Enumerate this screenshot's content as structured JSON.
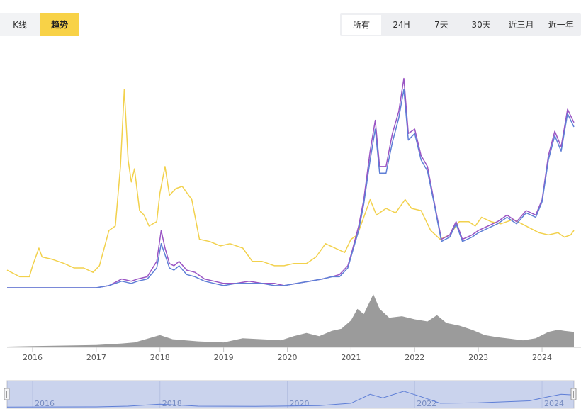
{
  "view_toggle": {
    "kline_label": "K线",
    "trend_label": "趋势"
  },
  "range_buttons": [
    "所有",
    "24H",
    "7天",
    "30天",
    "近三月",
    "近一年"
  ],
  "active_range": 0,
  "colors": {
    "yellow": "#f2d14c",
    "purple": "#9a55c4",
    "blue": "#5f7fd6",
    "volume": "#9b9b9b",
    "accent": "#f8d247"
  },
  "chart_data": {
    "type": "line",
    "x_tick_labels": [
      "2016",
      "2017",
      "2018",
      "2019",
      "2020",
      "2021",
      "2022",
      "2023",
      "2024"
    ],
    "navigator_labels": [
      "2016",
      "2018",
      "2020",
      "2022",
      "2024"
    ],
    "xlim": [
      2015.6,
      2024.5
    ],
    "ylim": [
      0,
      100
    ],
    "volume_ylim": [
      0,
      100
    ],
    "series": [
      {
        "key": "yellow",
        "points": [
          [
            2015.6,
            8
          ],
          [
            2015.8,
            5
          ],
          [
            2015.95,
            5
          ],
          [
            2016.0,
            10
          ],
          [
            2016.1,
            18
          ],
          [
            2016.15,
            14
          ],
          [
            2016.3,
            13
          ],
          [
            2016.5,
            11
          ],
          [
            2016.65,
            9
          ],
          [
            2016.8,
            9
          ],
          [
            2016.95,
            7
          ],
          [
            2017.05,
            10
          ],
          [
            2017.2,
            26
          ],
          [
            2017.3,
            28
          ],
          [
            2017.38,
            55
          ],
          [
            2017.44,
            90
          ],
          [
            2017.5,
            58
          ],
          [
            2017.55,
            48
          ],
          [
            2017.6,
            54
          ],
          [
            2017.68,
            35
          ],
          [
            2017.75,
            33
          ],
          [
            2017.83,
            28
          ],
          [
            2017.95,
            30
          ],
          [
            2018.0,
            43
          ],
          [
            2018.08,
            55
          ],
          [
            2018.15,
            42
          ],
          [
            2018.25,
            45
          ],
          [
            2018.35,
            46
          ],
          [
            2018.5,
            40
          ],
          [
            2018.62,
            22
          ],
          [
            2018.78,
            21
          ],
          [
            2018.95,
            19
          ],
          [
            2019.1,
            20
          ],
          [
            2019.3,
            18
          ],
          [
            2019.45,
            12
          ],
          [
            2019.6,
            12
          ],
          [
            2019.8,
            10
          ],
          [
            2019.95,
            10
          ],
          [
            2020.1,
            11
          ],
          [
            2020.3,
            11
          ],
          [
            2020.45,
            14
          ],
          [
            2020.6,
            20
          ],
          [
            2020.75,
            18
          ],
          [
            2020.9,
            16
          ],
          [
            2021.0,
            22
          ],
          [
            2021.1,
            24
          ],
          [
            2021.2,
            32
          ],
          [
            2021.3,
            40
          ],
          [
            2021.4,
            33
          ],
          [
            2021.55,
            36
          ],
          [
            2021.7,
            34
          ],
          [
            2021.85,
            40
          ],
          [
            2021.95,
            36
          ],
          [
            2022.1,
            35
          ],
          [
            2022.25,
            26
          ],
          [
            2022.4,
            22
          ],
          [
            2022.55,
            24
          ],
          [
            2022.7,
            30
          ],
          [
            2022.85,
            30
          ],
          [
            2022.95,
            28
          ],
          [
            2023.05,
            32
          ],
          [
            2023.2,
            30
          ],
          [
            2023.35,
            29
          ],
          [
            2023.55,
            31
          ],
          [
            2023.75,
            28
          ],
          [
            2023.95,
            25
          ],
          [
            2024.1,
            24
          ],
          [
            2024.25,
            25
          ],
          [
            2024.35,
            23
          ],
          [
            2024.45,
            24
          ],
          [
            2024.5,
            26
          ]
        ]
      },
      {
        "key": "purple",
        "points": [
          [
            2015.6,
            0
          ],
          [
            2016.5,
            0
          ],
          [
            2017.0,
            0
          ],
          [
            2017.2,
            1
          ],
          [
            2017.4,
            4
          ],
          [
            2017.55,
            3
          ],
          [
            2017.65,
            4
          ],
          [
            2017.8,
            5
          ],
          [
            2017.95,
            12
          ],
          [
            2018.02,
            26
          ],
          [
            2018.08,
            18
          ],
          [
            2018.15,
            11
          ],
          [
            2018.22,
            10
          ],
          [
            2018.3,
            12
          ],
          [
            2018.42,
            8
          ],
          [
            2018.55,
            7
          ],
          [
            2018.7,
            4
          ],
          [
            2018.85,
            3
          ],
          [
            2019.0,
            2
          ],
          [
            2019.2,
            2
          ],
          [
            2019.4,
            3
          ],
          [
            2019.6,
            2
          ],
          [
            2019.8,
            2
          ],
          [
            2019.95,
            1
          ],
          [
            2020.15,
            2
          ],
          [
            2020.35,
            3
          ],
          [
            2020.55,
            4
          ],
          [
            2020.7,
            5
          ],
          [
            2020.82,
            6
          ],
          [
            2020.95,
            10
          ],
          [
            2021.02,
            17
          ],
          [
            2021.12,
            28
          ],
          [
            2021.2,
            40
          ],
          [
            2021.3,
            62
          ],
          [
            2021.38,
            76
          ],
          [
            2021.45,
            55
          ],
          [
            2021.55,
            55
          ],
          [
            2021.65,
            70
          ],
          [
            2021.75,
            80
          ],
          [
            2021.83,
            95
          ],
          [
            2021.9,
            70
          ],
          [
            2022.0,
            72
          ],
          [
            2022.1,
            60
          ],
          [
            2022.2,
            55
          ],
          [
            2022.3,
            40
          ],
          [
            2022.42,
            22
          ],
          [
            2022.55,
            24
          ],
          [
            2022.65,
            30
          ],
          [
            2022.75,
            22
          ],
          [
            2022.9,
            24
          ],
          [
            2023.0,
            26
          ],
          [
            2023.15,
            28
          ],
          [
            2023.3,
            30
          ],
          [
            2023.45,
            33
          ],
          [
            2023.6,
            30
          ],
          [
            2023.75,
            35
          ],
          [
            2023.9,
            33
          ],
          [
            2024.0,
            40
          ],
          [
            2024.1,
            60
          ],
          [
            2024.2,
            71
          ],
          [
            2024.3,
            64
          ],
          [
            2024.4,
            81
          ],
          [
            2024.5,
            75
          ]
        ]
      },
      {
        "key": "blue",
        "points": [
          [
            2015.6,
            0
          ],
          [
            2016.5,
            0
          ],
          [
            2017.0,
            0
          ],
          [
            2017.2,
            1
          ],
          [
            2017.4,
            3
          ],
          [
            2017.55,
            2
          ],
          [
            2017.65,
            3
          ],
          [
            2017.8,
            4
          ],
          [
            2017.95,
            9
          ],
          [
            2018.02,
            20
          ],
          [
            2018.08,
            15
          ],
          [
            2018.15,
            9
          ],
          [
            2018.22,
            8
          ],
          [
            2018.3,
            10
          ],
          [
            2018.42,
            6
          ],
          [
            2018.55,
            5
          ],
          [
            2018.7,
            3
          ],
          [
            2018.85,
            2
          ],
          [
            2019.0,
            1
          ],
          [
            2019.2,
            2
          ],
          [
            2019.4,
            2
          ],
          [
            2019.6,
            2
          ],
          [
            2019.8,
            1
          ],
          [
            2019.95,
            1
          ],
          [
            2020.15,
            2
          ],
          [
            2020.35,
            3
          ],
          [
            2020.55,
            4
          ],
          [
            2020.7,
            5
          ],
          [
            2020.82,
            5
          ],
          [
            2020.95,
            9
          ],
          [
            2021.02,
            16
          ],
          [
            2021.12,
            26
          ],
          [
            2021.2,
            38
          ],
          [
            2021.3,
            58
          ],
          [
            2021.38,
            72
          ],
          [
            2021.45,
            52
          ],
          [
            2021.55,
            52
          ],
          [
            2021.65,
            66
          ],
          [
            2021.75,
            77
          ],
          [
            2021.83,
            90
          ],
          [
            2021.9,
            67
          ],
          [
            2022.0,
            70
          ],
          [
            2022.1,
            58
          ],
          [
            2022.2,
            53
          ],
          [
            2022.3,
            39
          ],
          [
            2022.42,
            21
          ],
          [
            2022.55,
            23
          ],
          [
            2022.65,
            29
          ],
          [
            2022.75,
            21
          ],
          [
            2022.9,
            23
          ],
          [
            2023.0,
            25
          ],
          [
            2023.15,
            27
          ],
          [
            2023.3,
            29
          ],
          [
            2023.45,
            32
          ],
          [
            2023.6,
            29
          ],
          [
            2023.75,
            34
          ],
          [
            2023.9,
            32
          ],
          [
            2024.0,
            39
          ],
          [
            2024.1,
            58
          ],
          [
            2024.2,
            69
          ],
          [
            2024.3,
            62
          ],
          [
            2024.4,
            79
          ],
          [
            2024.5,
            73
          ]
        ]
      }
    ],
    "volume": [
      [
        2015.6,
        0
      ],
      [
        2016.0,
        1
      ],
      [
        2016.5,
        2
      ],
      [
        2017.0,
        3
      ],
      [
        2017.4,
        6
      ],
      [
        2017.6,
        8
      ],
      [
        2018.0,
        22
      ],
      [
        2018.2,
        14
      ],
      [
        2018.6,
        10
      ],
      [
        2019.0,
        8
      ],
      [
        2019.3,
        16
      ],
      [
        2019.6,
        14
      ],
      [
        2019.9,
        12
      ],
      [
        2020.1,
        20
      ],
      [
        2020.3,
        26
      ],
      [
        2020.5,
        20
      ],
      [
        2020.7,
        30
      ],
      [
        2020.85,
        34
      ],
      [
        2021.0,
        50
      ],
      [
        2021.1,
        72
      ],
      [
        2021.2,
        62
      ],
      [
        2021.35,
        100
      ],
      [
        2021.45,
        72
      ],
      [
        2021.6,
        55
      ],
      [
        2021.8,
        58
      ],
      [
        2022.0,
        52
      ],
      [
        2022.2,
        48
      ],
      [
        2022.35,
        60
      ],
      [
        2022.5,
        45
      ],
      [
        2022.7,
        40
      ],
      [
        2022.9,
        32
      ],
      [
        2023.1,
        22
      ],
      [
        2023.3,
        18
      ],
      [
        2023.5,
        15
      ],
      [
        2023.7,
        12
      ],
      [
        2023.9,
        16
      ],
      [
        2024.1,
        28
      ],
      [
        2024.25,
        32
      ],
      [
        2024.35,
        30
      ],
      [
        2024.5,
        28
      ]
    ],
    "navigator_line": [
      [
        2015.6,
        2
      ],
      [
        2017.0,
        3
      ],
      [
        2017.5,
        6
      ],
      [
        2018.0,
        14
      ],
      [
        2018.6,
        6
      ],
      [
        2019.5,
        5
      ],
      [
        2020.5,
        8
      ],
      [
        2021.0,
        18
      ],
      [
        2021.3,
        55
      ],
      [
        2021.5,
        40
      ],
      [
        2021.83,
        68
      ],
      [
        2022.1,
        45
      ],
      [
        2022.4,
        18
      ],
      [
        2023.0,
        20
      ],
      [
        2023.8,
        28
      ],
      [
        2024.1,
        45
      ],
      [
        2024.3,
        55
      ],
      [
        2024.5,
        52
      ]
    ]
  }
}
